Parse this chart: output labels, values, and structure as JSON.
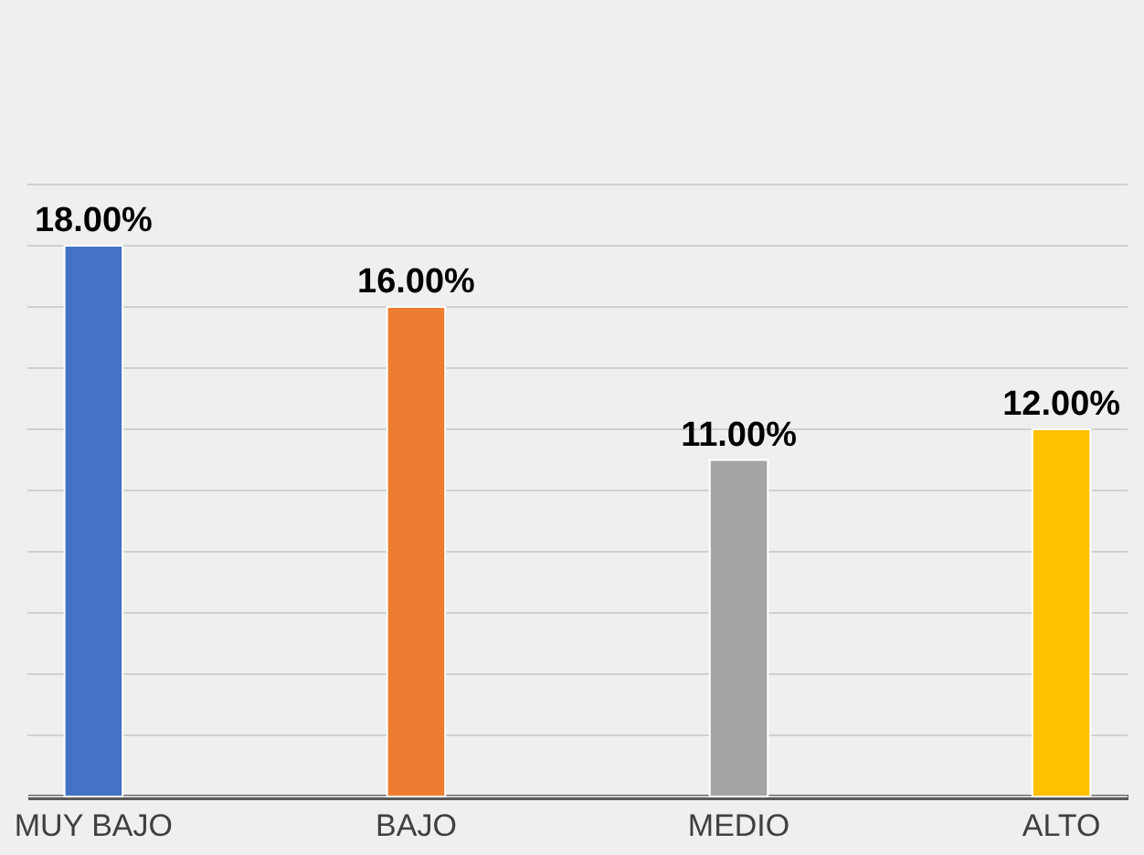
{
  "chart_data": {
    "type": "bar",
    "categories": [
      "MUY BAJO",
      "BAJO",
      "MEDIO",
      "ALTO"
    ],
    "values": [
      18,
      16,
      11,
      12
    ],
    "colors": [
      "#4472c4",
      "#ed7d31",
      "#a5a5a5",
      "#ffc000"
    ],
    "value_labels": [
      "18.00%",
      "16.00%",
      "11.00%",
      "12.00%"
    ],
    "ylim": [
      0,
      20
    ],
    "yticks": [
      {
        "value": 0,
        "label": null
      },
      {
        "value": 2,
        "label": null
      },
      {
        "value": 4,
        "label": null
      },
      {
        "value": 6,
        "label": null
      },
      {
        "value": 8,
        "label": null
      },
      {
        "value": 10,
        "label": null
      },
      {
        "value": 12,
        "label": null
      },
      {
        "value": 14,
        "label": null
      },
      {
        "value": 16,
        "label": null
      },
      {
        "value": 18,
        "label": null
      },
      {
        "value": 20,
        "label": null
      }
    ],
    "tick_labels": "x",
    "grid": "y"
  }
}
